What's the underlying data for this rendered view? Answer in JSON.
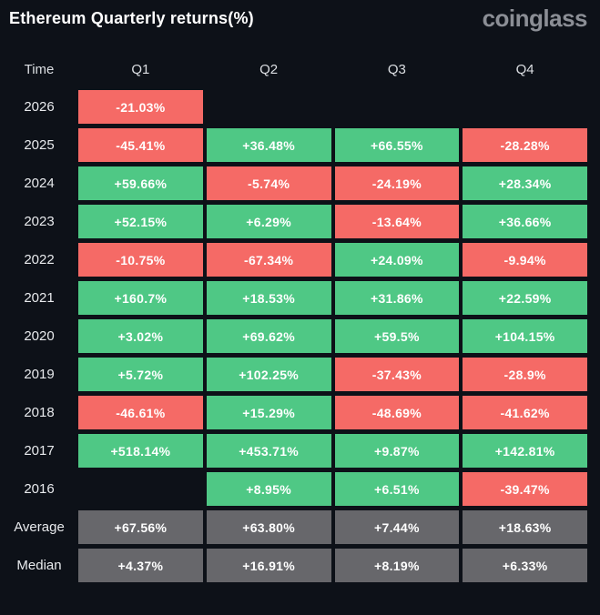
{
  "header": {
    "title": "Ethereum Quarterly returns(%)",
    "logo": "coinglass"
  },
  "colors": {
    "positive": "#4fc885",
    "negative": "#f56a66",
    "neutral": "#67676b",
    "background": "#0d1118"
  },
  "table": {
    "columns": [
      "Time",
      "Q1",
      "Q2",
      "Q3",
      "Q4"
    ],
    "rows": [
      {
        "label": "2026",
        "cells": [
          {
            "text": "-21.03%",
            "type": "negative"
          },
          null,
          null,
          null
        ]
      },
      {
        "label": "2025",
        "cells": [
          {
            "text": "-45.41%",
            "type": "negative"
          },
          {
            "text": "+36.48%",
            "type": "positive"
          },
          {
            "text": "+66.55%",
            "type": "positive"
          },
          {
            "text": "-28.28%",
            "type": "negative"
          }
        ]
      },
      {
        "label": "2024",
        "cells": [
          {
            "text": "+59.66%",
            "type": "positive"
          },
          {
            "text": "-5.74%",
            "type": "negative"
          },
          {
            "text": "-24.19%",
            "type": "negative"
          },
          {
            "text": "+28.34%",
            "type": "positive"
          }
        ]
      },
      {
        "label": "2023",
        "cells": [
          {
            "text": "+52.15%",
            "type": "positive"
          },
          {
            "text": "+6.29%",
            "type": "positive"
          },
          {
            "text": "-13.64%",
            "type": "negative"
          },
          {
            "text": "+36.66%",
            "type": "positive"
          }
        ]
      },
      {
        "label": "2022",
        "cells": [
          {
            "text": "-10.75%",
            "type": "negative"
          },
          {
            "text": "-67.34%",
            "type": "negative"
          },
          {
            "text": "+24.09%",
            "type": "positive"
          },
          {
            "text": "-9.94%",
            "type": "negative"
          }
        ]
      },
      {
        "label": "2021",
        "cells": [
          {
            "text": "+160.7%",
            "type": "positive"
          },
          {
            "text": "+18.53%",
            "type": "positive"
          },
          {
            "text": "+31.86%",
            "type": "positive"
          },
          {
            "text": "+22.59%",
            "type": "positive"
          }
        ]
      },
      {
        "label": "2020",
        "cells": [
          {
            "text": "+3.02%",
            "type": "positive"
          },
          {
            "text": "+69.62%",
            "type": "positive"
          },
          {
            "text": "+59.5%",
            "type": "positive"
          },
          {
            "text": "+104.15%",
            "type": "positive"
          }
        ]
      },
      {
        "label": "2019",
        "cells": [
          {
            "text": "+5.72%",
            "type": "positive"
          },
          {
            "text": "+102.25%",
            "type": "positive"
          },
          {
            "text": "-37.43%",
            "type": "negative"
          },
          {
            "text": "-28.9%",
            "type": "negative"
          }
        ]
      },
      {
        "label": "2018",
        "cells": [
          {
            "text": "-46.61%",
            "type": "negative"
          },
          {
            "text": "+15.29%",
            "type": "positive"
          },
          {
            "text": "-48.69%",
            "type": "negative"
          },
          {
            "text": "-41.62%",
            "type": "negative"
          }
        ]
      },
      {
        "label": "2017",
        "cells": [
          {
            "text": "+518.14%",
            "type": "positive"
          },
          {
            "text": "+453.71%",
            "type": "positive"
          },
          {
            "text": "+9.87%",
            "type": "positive"
          },
          {
            "text": "+142.81%",
            "type": "positive"
          }
        ]
      },
      {
        "label": "2016",
        "cells": [
          null,
          {
            "text": "+8.95%",
            "type": "positive"
          },
          {
            "text": "+6.51%",
            "type": "positive"
          },
          {
            "text": "-39.47%",
            "type": "negative"
          }
        ]
      },
      {
        "label": "Average",
        "cells": [
          {
            "text": "+67.56%",
            "type": "neutral"
          },
          {
            "text": "+63.80%",
            "type": "neutral"
          },
          {
            "text": "+7.44%",
            "type": "neutral"
          },
          {
            "text": "+18.63%",
            "type": "neutral"
          }
        ]
      },
      {
        "label": "Median",
        "cells": [
          {
            "text": "+4.37%",
            "type": "neutral"
          },
          {
            "text": "+16.91%",
            "type": "neutral"
          },
          {
            "text": "+8.19%",
            "type": "neutral"
          },
          {
            "text": "+6.33%",
            "type": "neutral"
          }
        ]
      }
    ]
  },
  "chart_data": {
    "type": "table",
    "title": "Ethereum Quarterly returns(%)",
    "columns": [
      "Q1",
      "Q2",
      "Q3",
      "Q4"
    ],
    "rows": [
      "2026",
      "2025",
      "2024",
      "2023",
      "2022",
      "2021",
      "2020",
      "2019",
      "2018",
      "2017",
      "2016",
      "Average",
      "Median"
    ],
    "values": [
      [
        -21.03,
        null,
        null,
        null
      ],
      [
        -45.41,
        36.48,
        66.55,
        -28.28
      ],
      [
        59.66,
        -5.74,
        -24.19,
        28.34
      ],
      [
        52.15,
        6.29,
        -13.64,
        36.66
      ],
      [
        -10.75,
        -67.34,
        24.09,
        -9.94
      ],
      [
        160.7,
        18.53,
        31.86,
        22.59
      ],
      [
        3.02,
        69.62,
        59.5,
        104.15
      ],
      [
        5.72,
        102.25,
        -37.43,
        -28.9
      ],
      [
        -46.61,
        15.29,
        -48.69,
        -41.62
      ],
      [
        518.14,
        453.71,
        9.87,
        142.81
      ],
      [
        null,
        8.95,
        6.51,
        -39.47
      ],
      [
        67.56,
        63.8,
        7.44,
        18.63
      ],
      [
        4.37,
        16.91,
        8.19,
        6.33
      ]
    ],
    "legend": "green = positive return, red = negative return, gray = summary rows (Average/Median)",
    "units": "%"
  }
}
